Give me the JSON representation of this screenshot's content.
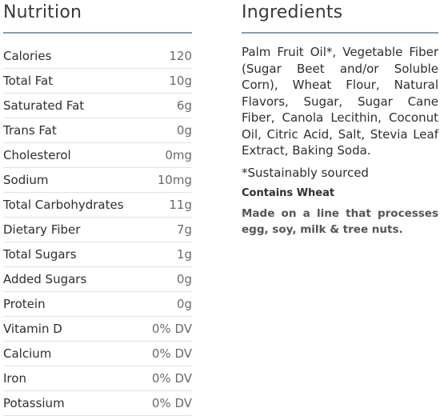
{
  "nutrition": {
    "title": "Nutrition",
    "rows": [
      {
        "label": "Calories",
        "value": "120"
      },
      {
        "label": "Total Fat",
        "value": "10g"
      },
      {
        "label": "Saturated Fat",
        "value": "6g"
      },
      {
        "label": "Trans Fat",
        "value": "0g"
      },
      {
        "label": "Cholesterol",
        "value": "0mg"
      },
      {
        "label": "Sodium",
        "value": "10mg"
      },
      {
        "label": "Total Carbohydrates",
        "value": "11g"
      },
      {
        "label": "Dietary Fiber",
        "value": "7g"
      },
      {
        "label": "Total Sugars",
        "value": "1g"
      },
      {
        "label": "Added Sugars",
        "value": "0g"
      },
      {
        "label": "Protein",
        "value": "0g"
      },
      {
        "label": "Vitamin D",
        "value": "0% DV"
      },
      {
        "label": "Calcium",
        "value": "0% DV"
      },
      {
        "label": "Iron",
        "value": "0% DV"
      },
      {
        "label": "Potassium",
        "value": "0% DV"
      }
    ]
  },
  "ingredients": {
    "title": "Ingredients",
    "text": "Palm Fruit Oil*, Vegetable Fiber (Sugar Beet and/or Soluble Corn), Wheat Flour, Natural Flavors, Sugar, Sugar Cane Fiber, Canola Lecithin, Coconut Oil, Citric Acid, Salt, Stevia Leaf Extract, Baking Soda.",
    "footnote": "*Sustainably sourced",
    "allergen": "Contains Wheat",
    "facility_note": "Made on a line that processes egg, soy, milk & tree nuts."
  },
  "colors": {
    "rule": "#7fa0b8",
    "row_divider": "#e2e2e2",
    "text": "#2e2e2e",
    "value_text": "#6a6a6a"
  }
}
